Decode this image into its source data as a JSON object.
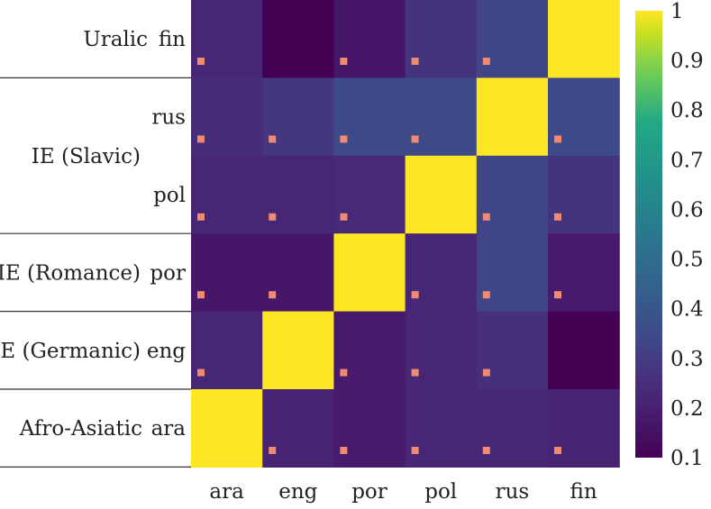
{
  "chart_data": {
    "type": "heatmap",
    "x_categories": [
      "ara",
      "eng",
      "por",
      "pol",
      "rus",
      "fin"
    ],
    "y_categories": [
      "fin",
      "rus",
      "pol",
      "por",
      "eng",
      "ara"
    ],
    "groups": [
      {
        "label": "Uralic",
        "rows": [
          "fin"
        ]
      },
      {
        "label": "IE (Slavic)",
        "rows": [
          "rus",
          "pol"
        ]
      },
      {
        "label": "IE (Romance)",
        "rows": [
          "por"
        ]
      },
      {
        "label": "IE (Germanic)",
        "rows": [
          "eng"
        ]
      },
      {
        "label": "Afro-Asiatic",
        "rows": [
          "ara"
        ]
      }
    ],
    "values": [
      [
        0.22,
        0.1,
        0.17,
        0.27,
        0.33,
        1.0
      ],
      [
        0.24,
        0.28,
        0.35,
        0.35,
        1.0,
        0.35
      ],
      [
        0.22,
        0.22,
        0.23,
        1.0,
        0.33,
        0.27
      ],
      [
        0.17,
        0.17,
        1.0,
        0.22,
        0.33,
        0.18
      ],
      [
        0.22,
        1.0,
        0.18,
        0.22,
        0.25,
        0.1
      ],
      [
        1.0,
        0.21,
        0.18,
        0.22,
        0.22,
        0.21
      ]
    ],
    "markers": [
      [
        true,
        false,
        true,
        true,
        true,
        false
      ],
      [
        true,
        true,
        true,
        true,
        false,
        true
      ],
      [
        true,
        true,
        true,
        false,
        true,
        true
      ],
      [
        true,
        true,
        false,
        true,
        true,
        true
      ],
      [
        true,
        false,
        true,
        true,
        true,
        false
      ],
      [
        false,
        true,
        true,
        true,
        true,
        true
      ]
    ],
    "marker_color": "#f08a70",
    "colorscale": "viridis",
    "colorbar": {
      "min": 0.1,
      "max": 1.0,
      "ticks": [
        "0.1",
        "0.2",
        "0.3",
        "0.4",
        "0.5",
        "0.6",
        "0.7",
        "0.8",
        "0.9",
        "1"
      ]
    }
  }
}
